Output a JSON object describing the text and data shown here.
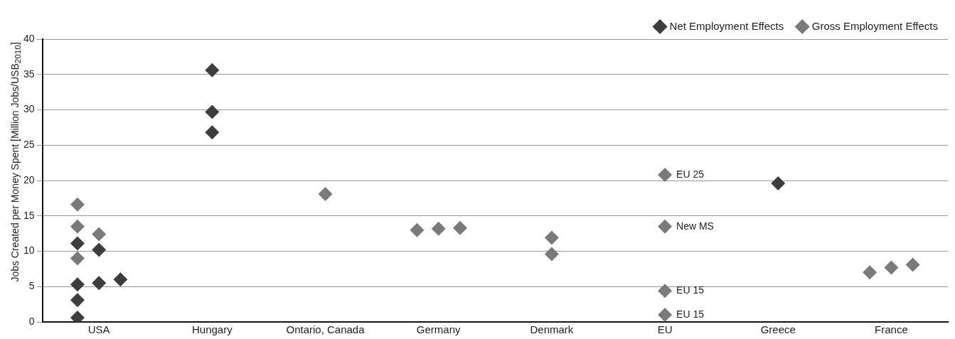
{
  "chart_data": {
    "type": "scatter",
    "ylabel": "Jobs Created per Money Spent [Million Jobs/USB$_{2010}$]",
    "categories": [
      "USA",
      "Hungary",
      "Ontario, Canada",
      "Germany",
      "Denmark",
      "EU",
      "Greece",
      "France"
    ],
    "ylim": [
      0,
      40
    ],
    "yticks": [
      0,
      5,
      10,
      15,
      20,
      25,
      30,
      35,
      40
    ],
    "grid": "y",
    "legend": "top right",
    "marker": "diamond",
    "series": [
      {
        "name": "Net Employment Effects",
        "color": "#3d3d3d",
        "x": [
          "USA",
          "USA",
          "USA",
          "USA",
          "USA",
          "USA",
          "USA",
          "Hungary",
          "Hungary",
          "Hungary",
          "Greece"
        ],
        "values": [
          11.1,
          5.3,
          5.5,
          3.1,
          0.6,
          10.2,
          6.0,
          35.6,
          29.7,
          26.8,
          19.6
        ]
      },
      {
        "name": "Gross Employment Effects",
        "color": "#7a7a7a",
        "x": [
          "USA",
          "USA",
          "USA",
          "USA",
          "Ontario, Canada",
          "Germany",
          "Germany",
          "Germany",
          "Denmark",
          "Denmark",
          "EU",
          "EU",
          "EU",
          "EU",
          "France",
          "France",
          "France"
        ],
        "values": [
          16.6,
          13.5,
          9.0,
          12.4,
          18.1,
          13.0,
          13.2,
          13.3,
          9.6,
          11.9,
          20.8,
          13.5,
          4.4,
          1.0,
          7.0,
          7.7,
          8.1
        ]
      }
    ],
    "annotations": [
      {
        "text": "EU 25",
        "x": "EU",
        "y": 20.8
      },
      {
        "text": "New MS",
        "x": "EU",
        "y": 13.5
      },
      {
        "text": "EU 15",
        "x": "EU",
        "y": 4.4
      },
      {
        "text": "EU 15",
        "x": "EU",
        "y": 1.0
      }
    ]
  }
}
